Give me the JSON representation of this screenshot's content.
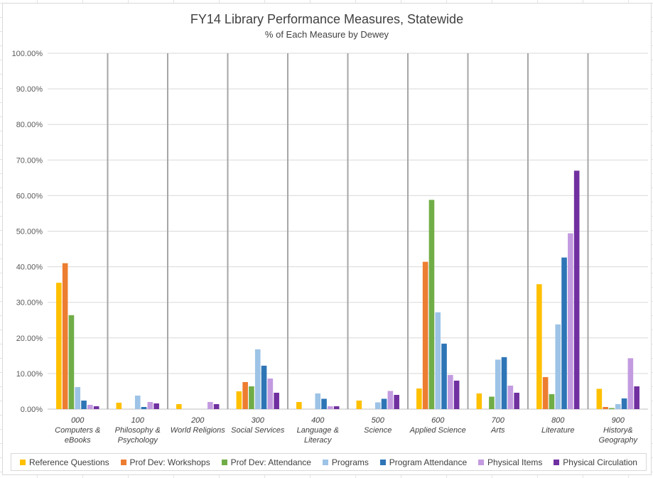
{
  "chart_data": {
    "type": "bar",
    "title": "FY14 Library Performance Measures, Statewide",
    "subtitle": "% of Each Measure by Dewey",
    "xlabel": "",
    "ylabel": "",
    "ylim": [
      0,
      100
    ],
    "yticks": [
      "0.00%",
      "10.00%",
      "20.00%",
      "30.00%",
      "40.00%",
      "50.00%",
      "60.00%",
      "70.00%",
      "80.00%",
      "90.00%",
      "100.00%"
    ],
    "categories": [
      [
        "000",
        "Computers &",
        "eBooks"
      ],
      [
        "100",
        "Philosophy &",
        "Psychology"
      ],
      [
        "200",
        "World Religions"
      ],
      [
        "300",
        "Social Services"
      ],
      [
        "400",
        "Language &",
        "Literacy"
      ],
      [
        "500",
        "Science"
      ],
      [
        "600",
        "Applied Science"
      ],
      [
        "700",
        "Arts"
      ],
      [
        "800",
        "Literature"
      ],
      [
        "900",
        "History&",
        "Geography"
      ]
    ],
    "legend_position": "bottom",
    "gridlines": true,
    "series": [
      {
        "name": "Reference Questions",
        "color": "#FFC000",
        "values": [
          35.5,
          1.8,
          1.4,
          5.0,
          2.0,
          2.4,
          5.8,
          4.4,
          35.1,
          5.7
        ]
      },
      {
        "name": "Prof Dev: Workshops",
        "color": "#ED7D31",
        "values": [
          41.0,
          0,
          0,
          7.6,
          0,
          0,
          41.4,
          0,
          9.0,
          0.6
        ]
      },
      {
        "name": "Prof Dev: Attendance",
        "color": "#70AD47",
        "values": [
          26.4,
          0,
          0,
          6.4,
          0,
          0,
          58.8,
          3.5,
          4.2,
          0.3
        ]
      },
      {
        "name": "Programs",
        "color": "#9DC3E6",
        "values": [
          6.2,
          3.8,
          0,
          16.8,
          4.4,
          1.9,
          27.2,
          13.9,
          23.8,
          1.4
        ]
      },
      {
        "name": "Program Attendance",
        "color": "#2E75B6",
        "values": [
          2.4,
          0.6,
          0,
          12.2,
          2.9,
          2.9,
          18.4,
          14.6,
          42.6,
          3.0
        ]
      },
      {
        "name": "Physical Items",
        "color": "#C39BE0",
        "values": [
          1.2,
          2.0,
          2.0,
          8.6,
          0.8,
          5.1,
          9.6,
          6.6,
          49.4,
          14.3
        ]
      },
      {
        "name": "Physical Circulation",
        "color": "#7030A0",
        "values": [
          0.8,
          1.6,
          1.4,
          4.6,
          0.8,
          4.0,
          8.0,
          4.6,
          67.0,
          6.4
        ]
      }
    ]
  }
}
